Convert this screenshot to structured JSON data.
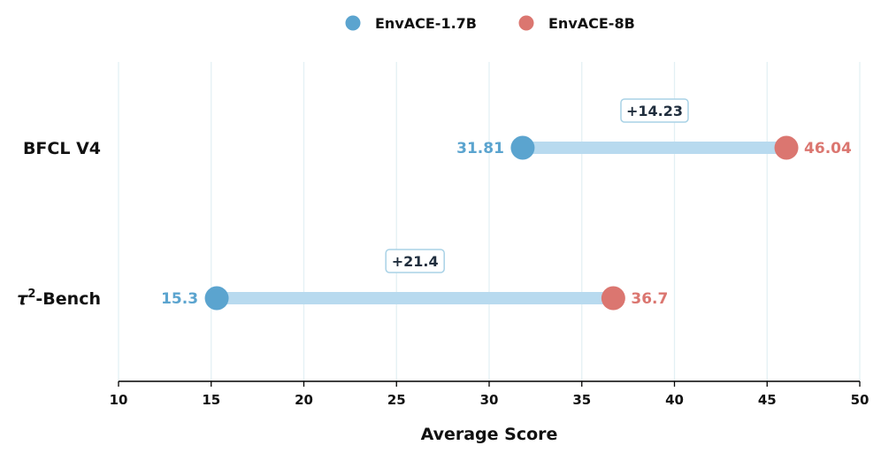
{
  "chart_data": {
    "type": "dumbbell",
    "xlabel": "Average Score",
    "xlim": [
      10,
      50
    ],
    "xticks": [
      10,
      15,
      20,
      25,
      30,
      35,
      40,
      45,
      50
    ],
    "grid": "vertical",
    "legend_position": "top-center",
    "series": [
      {
        "name": "EnvACE-1.7B",
        "color": "#5ba4cf"
      },
      {
        "name": "EnvACE-8B",
        "color": "#db7670"
      }
    ],
    "categories": [
      {
        "label": "BFCL V4",
        "low": 31.81,
        "high": 46.04,
        "low_label": "31.81",
        "high_label": "46.04",
        "delta_label": "+14.23"
      },
      {
        "label": "τ",
        "label_sup": "2",
        "label_suffix": "-Bench",
        "low": 15.3,
        "high": 36.7,
        "low_label": "15.3",
        "high_label": "36.7",
        "delta_label": "+21.4"
      }
    ],
    "colors": {
      "connector": "#b8daef",
      "delta_border": "#a9d2e6",
      "grid": "#e3f0f4",
      "axis": "#000000",
      "delta_text": "#1f2d3d"
    }
  }
}
